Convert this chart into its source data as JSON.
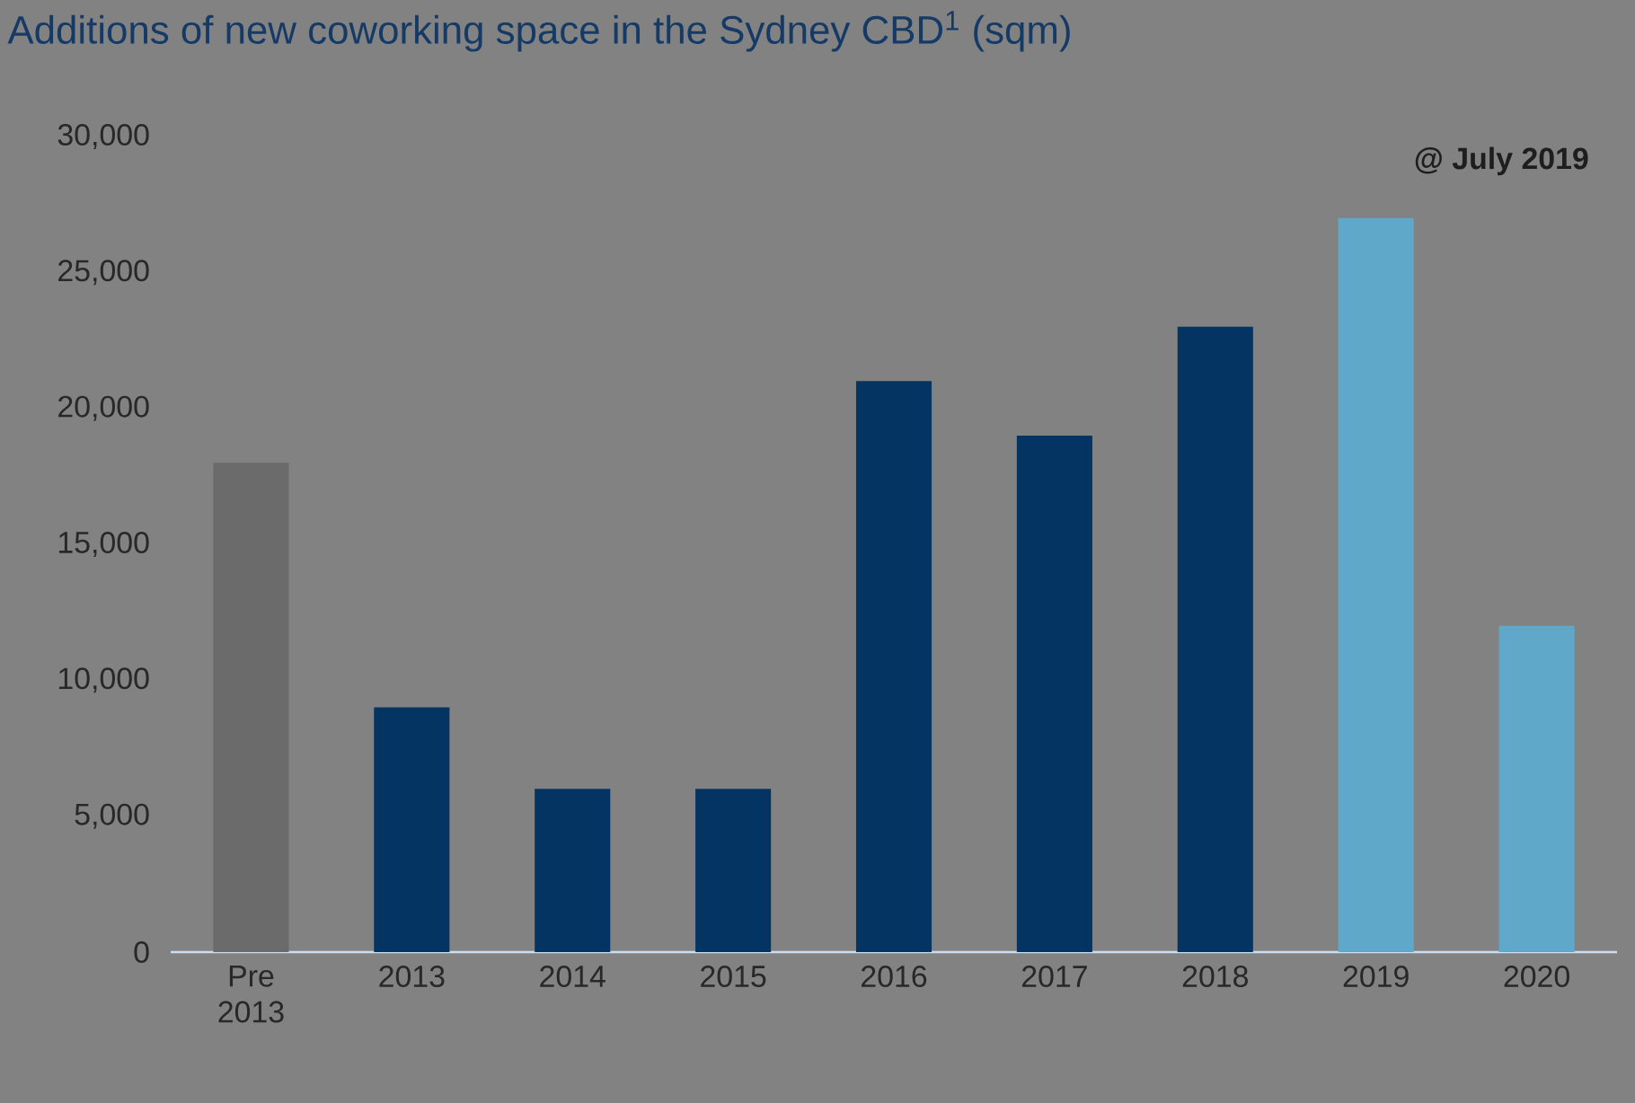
{
  "chart_data": {
    "type": "bar",
    "title": "Additions of new coworking space in the Sydney CBD$^{1}$ (sqm)",
    "categories": [
      "Pre 2013",
      "2013",
      "2014",
      "2015",
      "2016",
      "2017",
      "2018",
      "2019",
      "2020"
    ],
    "values": [
      18000,
      9000,
      6000,
      6000,
      21000,
      19000,
      23000,
      27000,
      12000
    ],
    "colors": [
      "#6b6b6b",
      "#043462",
      "#043462",
      "#043462",
      "#043462",
      "#043462",
      "#043462",
      "#5fa8c9",
      "#5fa8c9"
    ],
    "ylim": [
      0,
      30000
    ],
    "yticks": [
      0,
      {
        "value": 5000,
        "label": "5,000"
      },
      {
        "value": 10000,
        "label": "10,000"
      },
      {
        "value": 15000,
        "label": "15,000"
      },
      {
        "value": 20000,
        "label": "20,000"
      },
      {
        "value": 25000,
        "label": "25,000"
      },
      {
        "value": 30000,
        "label": "30,000"
      }
    ],
    "annotations": [
      "@ July 2019"
    ],
    "grid": false
  }
}
